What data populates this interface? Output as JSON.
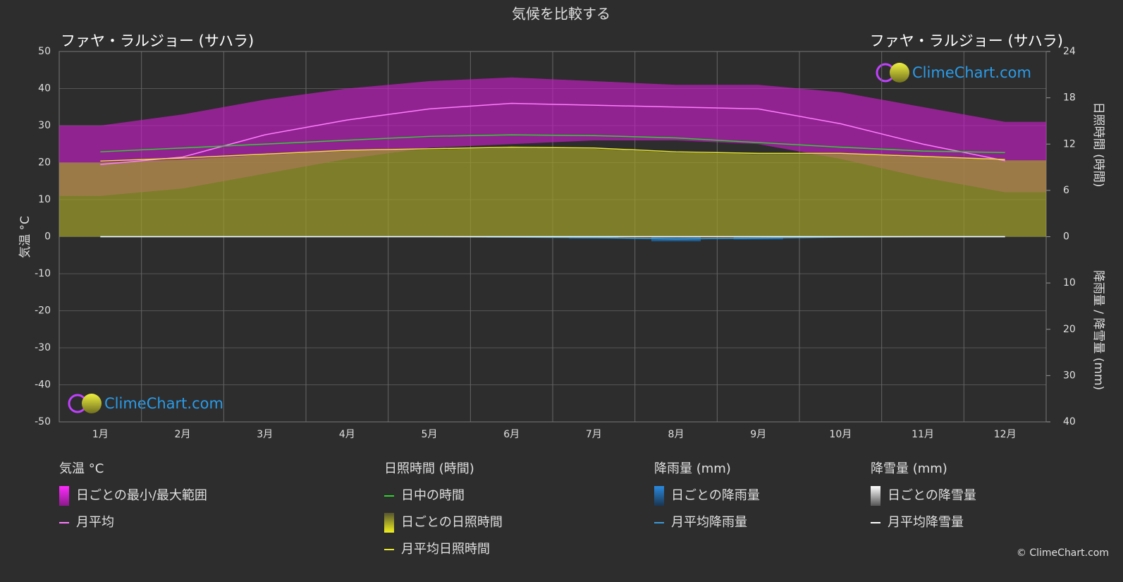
{
  "chart_data": {
    "type": "line",
    "title": "気候を比較する",
    "location_left": "ファヤ・ラルジョー (サハラ)",
    "location_right": "ファヤ・ラルジョー (サハラ)",
    "ylabel": "気温 °C",
    "y2label": "日照時間 (時間)",
    "y3label": "降雨量 / 降雪量 (mm)",
    "watermark": "ClimeChart.com",
    "watermark_bottom": "ClimeChart.com",
    "copyright": "© ClimeChart.com",
    "categories": [
      "1月",
      "2月",
      "3月",
      "4月",
      "5月",
      "6月",
      "7月",
      "8月",
      "9月",
      "10月",
      "11月",
      "12月"
    ],
    "ylim": [
      -50,
      50
    ],
    "yticks": [
      -50,
      -40,
      -30,
      -20,
      -10,
      0,
      10,
      20,
      30,
      40,
      50
    ],
    "y2lim": [
      0,
      24
    ],
    "y2ticks": [
      0,
      6,
      12,
      18,
      24
    ],
    "y3lim": [
      0,
      40
    ],
    "y3ticks": [
      0,
      10,
      20,
      30,
      40
    ],
    "grid": true,
    "legend_groups": [
      {
        "title": "気温 °C"
      },
      {
        "title": "日照時間 (時間)"
      },
      {
        "title": "降雨量 (mm)"
      },
      {
        "title": "降雪量 (mm)"
      }
    ],
    "series": [
      {
        "name": "日ごとの最小/最大範囲",
        "style": "band",
        "group": 0,
        "color": "#c81ec8",
        "low": [
          11,
          13,
          17,
          21,
          24,
          25,
          26,
          26,
          25,
          21,
          16,
          12
        ],
        "high": [
          30,
          33,
          37,
          40,
          42,
          43,
          42,
          41,
          41,
          39,
          35,
          31
        ]
      },
      {
        "name": "月平均",
        "style": "line",
        "group": 0,
        "color": "#ff7cff",
        "values": [
          19.5,
          21.5,
          27.5,
          31.5,
          34.5,
          36,
          35.5,
          35,
          34.5,
          30.5,
          25,
          20.5
        ]
      },
      {
        "name": "日中の時間",
        "style": "line",
        "group": 1,
        "axis": "y2",
        "color": "#2ed12e",
        "values": [
          11.0,
          11.5,
          12.0,
          12.5,
          13.0,
          13.2,
          13.1,
          12.8,
          12.2,
          11.6,
          11.1,
          10.9
        ]
      },
      {
        "name": "日ごとの日照時間",
        "style": "area",
        "group": 1,
        "axis": "y2",
        "color": "#a0a02a",
        "values": [
          9.6,
          10.0,
          10.6,
          11.1,
          11.3,
          11.5,
          11.4,
          10.9,
          10.7,
          10.7,
          10.3,
          9.9
        ]
      },
      {
        "name": "月平均日照時間",
        "style": "line",
        "group": 1,
        "axis": "y2",
        "color": "#e8e830",
        "values": [
          9.8,
          10.2,
          10.7,
          11.2,
          11.4,
          11.6,
          11.5,
          11.0,
          10.8,
          10.8,
          10.4,
          10.0
        ]
      },
      {
        "name": "日ごとの降雨量",
        "style": "bar",
        "group": 2,
        "axis": "y3",
        "color": "#1e78c8",
        "values": [
          0,
          0,
          0,
          0,
          0,
          0.2,
          0.4,
          1.0,
          0.6,
          0.1,
          0,
          0
        ]
      },
      {
        "name": "月平均降雨量",
        "style": "line",
        "group": 2,
        "axis": "y3",
        "color": "#3a9ad8",
        "values": [
          0,
          0,
          0,
          0,
          0,
          0.1,
          0.2,
          0.5,
          0.3,
          0.1,
          0,
          0
        ]
      },
      {
        "name": "日ごとの降雪量",
        "style": "bar",
        "group": 3,
        "axis": "y3",
        "color": "#ffffff",
        "values": [
          0,
          0,
          0,
          0,
          0,
          0,
          0,
          0,
          0,
          0,
          0,
          0
        ]
      },
      {
        "name": "月平均降雪量",
        "style": "line",
        "group": 3,
        "axis": "y3",
        "color": "#ffffff",
        "values": [
          0,
          0,
          0,
          0,
          0,
          0,
          0,
          0,
          0,
          0,
          0,
          0
        ]
      }
    ]
  }
}
